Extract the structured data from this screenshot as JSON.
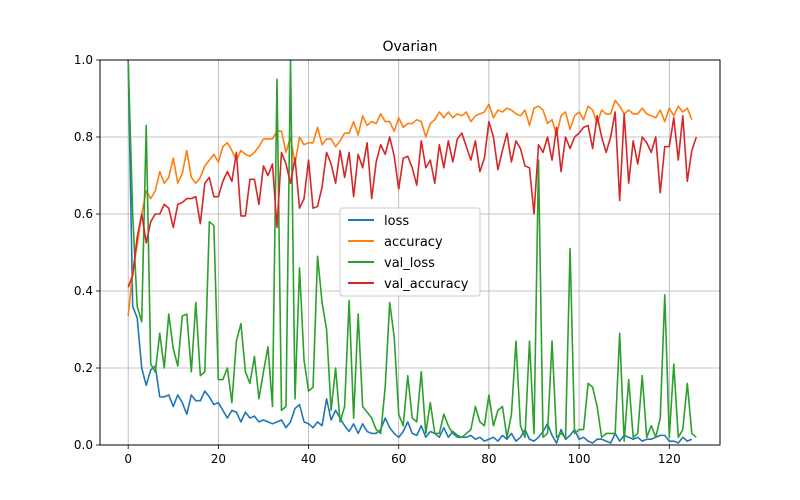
{
  "chart_data": {
    "type": "line",
    "title": "Ovarian",
    "xlabel": "",
    "ylabel": "",
    "xlim": [
      -6.25,
      131.25
    ],
    "ylim": [
      0,
      1.0
    ],
    "x_ticks": [
      0,
      20,
      40,
      60,
      80,
      100,
      120
    ],
    "y_ticks": [
      0.0,
      0.2,
      0.4,
      0.6,
      0.8,
      1.0
    ],
    "x_tick_labels": [
      "0",
      "20",
      "40",
      "60",
      "80",
      "100",
      "120"
    ],
    "y_tick_labels": [
      "0.0",
      "0.2",
      "0.4",
      "0.6",
      "0.8",
      "1.0"
    ],
    "grid": true,
    "legend_position": "center",
    "series": [
      {
        "name": "loss",
        "color": "#1f77b4",
        "values": [
          1.0,
          0.36,
          0.33,
          0.2,
          0.155,
          0.195,
          0.205,
          0.125,
          0.125,
          0.13,
          0.1,
          0.13,
          0.11,
          0.08,
          0.13,
          0.115,
          0.115,
          0.14,
          0.125,
          0.105,
          0.11,
          0.09,
          0.07,
          0.09,
          0.085,
          0.06,
          0.085,
          0.07,
          0.075,
          0.06,
          0.065,
          0.06,
          0.055,
          0.06,
          0.065,
          0.045,
          0.06,
          0.095,
          0.105,
          0.06,
          0.055,
          0.045,
          0.06,
          0.05,
          0.12,
          0.065,
          0.09,
          0.07,
          0.05,
          0.035,
          0.055,
          0.03,
          0.055,
          0.035,
          0.03,
          0.03,
          0.04,
          0.07,
          0.045,
          0.03,
          0.02,
          0.035,
          0.06,
          0.03,
          0.025,
          0.05,
          0.02,
          0.035,
          0.03,
          0.02,
          0.045,
          0.02,
          0.035,
          0.025,
          0.02,
          0.02,
          0.025,
          0.015,
          0.02,
          0.01,
          0.015,
          0.02,
          0.01,
          0.025,
          0.015,
          0.03,
          0.01,
          0.02,
          0.04,
          0.015,
          0.01,
          0.02,
          0.035,
          0.055,
          0.025,
          0.005,
          0.04,
          0.015,
          0.025,
          0.04,
          0.015,
          0.02,
          0.01,
          0.005,
          0.015,
          0.015,
          0.01,
          0.005,
          0.03,
          0.01,
          0.025,
          0.02,
          0.015,
          0.02,
          0.01,
          0.015,
          0.015,
          0.02,
          0.025,
          0.025,
          0.01,
          0.01,
          0.005,
          0.02,
          0.01,
          0.015
        ]
      },
      {
        "name": "accuracy",
        "color": "#ff7f0e",
        "values": [
          0.335,
          0.45,
          0.52,
          0.6,
          0.66,
          0.64,
          0.66,
          0.71,
          0.68,
          0.695,
          0.745,
          0.68,
          0.705,
          0.765,
          0.695,
          0.68,
          0.695,
          0.725,
          0.74,
          0.755,
          0.735,
          0.775,
          0.785,
          0.765,
          0.74,
          0.765,
          0.755,
          0.75,
          0.76,
          0.775,
          0.795,
          0.795,
          0.795,
          0.815,
          0.815,
          0.76,
          0.8,
          0.73,
          0.8,
          0.78,
          0.785,
          0.785,
          0.825,
          0.78,
          0.795,
          0.795,
          0.775,
          0.79,
          0.81,
          0.81,
          0.84,
          0.805,
          0.855,
          0.83,
          0.84,
          0.835,
          0.86,
          0.84,
          0.84,
          0.815,
          0.85,
          0.825,
          0.835,
          0.835,
          0.845,
          0.84,
          0.8,
          0.835,
          0.845,
          0.865,
          0.85,
          0.865,
          0.85,
          0.86,
          0.855,
          0.865,
          0.84,
          0.855,
          0.86,
          0.865,
          0.885,
          0.85,
          0.87,
          0.865,
          0.875,
          0.87,
          0.86,
          0.855,
          0.87,
          0.83,
          0.875,
          0.88,
          0.87,
          0.835,
          0.845,
          0.805,
          0.855,
          0.865,
          0.82,
          0.855,
          0.865,
          0.845,
          0.88,
          0.87,
          0.835,
          0.87,
          0.86,
          0.86,
          0.895,
          0.88,
          0.86,
          0.87,
          0.86,
          0.86,
          0.875,
          0.86,
          0.855,
          0.85,
          0.87,
          0.84,
          0.875,
          0.855,
          0.88,
          0.865,
          0.875,
          0.845
        ]
      },
      {
        "name": "val_loss",
        "color": "#2ca02c",
        "values": [
          1.0,
          0.6,
          0.36,
          0.32,
          0.83,
          0.21,
          0.19,
          0.29,
          0.2,
          0.34,
          0.25,
          0.205,
          0.335,
          0.34,
          0.19,
          0.37,
          0.18,
          0.19,
          0.58,
          0.57,
          0.17,
          0.17,
          0.2,
          0.11,
          0.27,
          0.315,
          0.19,
          0.16,
          0.23,
          0.12,
          0.19,
          0.255,
          0.1,
          0.95,
          0.09,
          0.1,
          1.0,
          0.12,
          0.46,
          0.22,
          0.14,
          0.15,
          0.49,
          0.37,
          0.3,
          0.09,
          0.2,
          0.06,
          0.1,
          0.375,
          0.07,
          0.34,
          0.1,
          0.085,
          0.07,
          0.04,
          0.03,
          0.15,
          0.37,
          0.28,
          0.08,
          0.05,
          0.18,
          0.07,
          0.06,
          0.19,
          0.03,
          0.11,
          0.03,
          0.03,
          0.08,
          0.05,
          0.03,
          0.02,
          0.02,
          0.03,
          0.04,
          0.1,
          0.06,
          0.05,
          0.13,
          0.05,
          0.09,
          0.1,
          0.02,
          0.08,
          0.27,
          0.05,
          0.02,
          0.27,
          0.03,
          0.74,
          0.02,
          0.03,
          0.27,
          0.02,
          0.03,
          0.02,
          0.51,
          0.03,
          0.04,
          0.04,
          0.16,
          0.15,
          0.1,
          0.02,
          0.03,
          0.03,
          0.03,
          0.29,
          0.01,
          0.17,
          0.02,
          0.03,
          0.18,
          0.02,
          0.05,
          0.02,
          0.07,
          0.39,
          0.02,
          0.21,
          0.02,
          0.04,
          0.16,
          0.03,
          0.02
        ]
      },
      {
        "name": "val_accuracy",
        "color": "#d62728",
        "values": [
          0.41,
          0.44,
          0.54,
          0.6,
          0.525,
          0.58,
          0.6,
          0.6,
          0.625,
          0.615,
          0.565,
          0.625,
          0.63,
          0.64,
          0.64,
          0.645,
          0.575,
          0.68,
          0.695,
          0.645,
          0.645,
          0.685,
          0.71,
          0.685,
          0.76,
          0.595,
          0.595,
          0.69,
          0.69,
          0.625,
          0.725,
          0.7,
          0.73,
          0.565,
          0.76,
          0.73,
          0.68,
          0.745,
          0.615,
          0.64,
          0.74,
          0.615,
          0.62,
          0.67,
          0.76,
          0.73,
          0.68,
          0.765,
          0.695,
          0.76,
          0.645,
          0.755,
          0.72,
          0.785,
          0.64,
          0.735,
          0.78,
          0.755,
          0.8,
          0.75,
          0.665,
          0.745,
          0.75,
          0.72,
          0.675,
          0.79,
          0.72,
          0.74,
          0.68,
          0.78,
          0.72,
          0.79,
          0.735,
          0.795,
          0.81,
          0.775,
          0.74,
          0.79,
          0.71,
          0.745,
          0.84,
          0.8,
          0.715,
          0.765,
          0.81,
          0.735,
          0.79,
          0.77,
          0.725,
          0.72,
          0.6,
          0.78,
          0.76,
          0.8,
          0.74,
          0.825,
          0.71,
          0.8,
          0.77,
          0.8,
          0.81,
          0.825,
          0.83,
          0.77,
          0.855,
          0.8,
          0.76,
          0.8,
          0.865,
          0.635,
          0.86,
          0.68,
          0.79,
          0.73,
          0.8,
          0.785,
          0.76,
          0.8,
          0.655,
          0.775,
          0.775,
          0.85,
          0.74,
          0.855,
          0.685,
          0.765,
          0.8
        ]
      }
    ]
  }
}
